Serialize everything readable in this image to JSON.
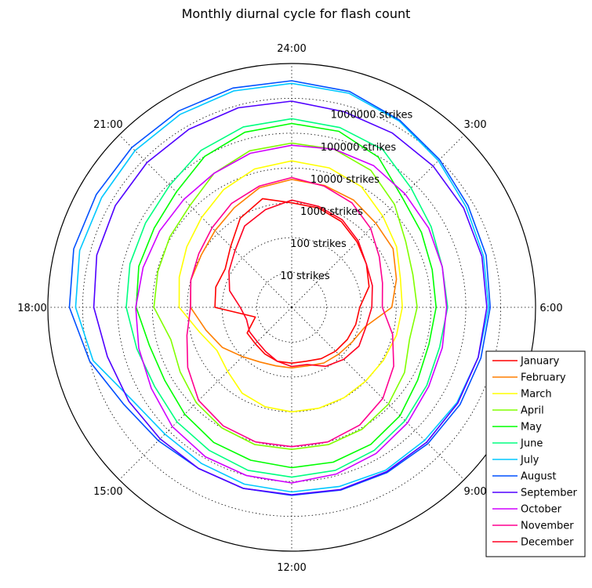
{
  "chart_data": {
    "type": "line",
    "projection": "polar",
    "title": "Monthly diurnal cycle for flash count",
    "theta_tick_labels": [
      "24:00",
      "3:00",
      "6:00",
      "9:00",
      "12:00",
      "15:00",
      "18:00",
      "21:00"
    ],
    "theta_tick_hours": [
      0,
      3,
      6,
      9,
      12,
      15,
      18,
      21
    ],
    "theta_direction": "clockwise",
    "theta_zero": "top",
    "radial_scale": "log",
    "radial_tick_labels": [
      "10 strikes",
      "100 strikes",
      "1000 strikes",
      "10000 strikes",
      "100000 strikes",
      "1000000 strikes"
    ],
    "radial_tick_values": [
      10,
      100,
      1000,
      10000,
      100000,
      1000000
    ],
    "rlim": [
      1,
      10000000
    ],
    "grid": true,
    "legend_position": "lower-right",
    "hours": [
      0,
      1,
      2,
      3,
      4,
      5,
      6,
      7,
      8,
      9,
      10,
      11,
      12,
      13,
      14,
      15,
      16,
      17,
      18,
      19,
      20,
      21,
      22,
      23
    ],
    "series": [
      {
        "name": "January",
        "color": "#ff0000",
        "values": [
          1000,
          900,
          700,
          450,
          300,
          200,
          90,
          80,
          70,
          60,
          50,
          40,
          40,
          40,
          35,
          30,
          30,
          12,
          160,
          180,
          160,
          300,
          900,
          1700
        ]
      },
      {
        "name": "February",
        "color": "#ff7f00",
        "values": [
          4700,
          4200,
          3600,
          2600,
          2300,
          1300,
          750,
          150,
          100,
          80,
          70,
          55,
          55,
          55,
          65,
          100,
          200,
          350,
          800,
          1000,
          1000,
          1300,
          2000,
          3600
        ]
      },
      {
        "name": "March",
        "color": "#ffff00",
        "values": [
          16000,
          14000,
          10000,
          5000,
          3000,
          1700,
          1500,
          1300,
          1100,
          1000,
          1000,
          1000,
          1000,
          900,
          700,
          400,
          300,
          550,
          1700,
          2200,
          3000,
          4500,
          8000,
          13000
        ]
      },
      {
        "name": "April",
        "color": "#80ff00",
        "values": [
          52000,
          50000,
          35000,
          15000,
          6000,
          4000,
          4000,
          3200,
          5500,
          8500,
          11000,
          12000,
          12000,
          12000,
          10000,
          7500,
          5000,
          3900,
          9000,
          9500,
          11000,
          13500,
          28000,
          45000
        ]
      },
      {
        "name": "May",
        "color": "#00ff00",
        "values": [
          190000,
          170000,
          95000,
          30000,
          20000,
          15000,
          14000,
          12000,
          15000,
          25000,
          35000,
          40000,
          40000,
          35000,
          30000,
          22000,
          16000,
          17000,
          29000,
          35000,
          36000,
          48000,
          100000,
          160000
        ]
      },
      {
        "name": "June",
        "color": "#00ff80",
        "values": [
          260000,
          220000,
          170000,
          70000,
          42000,
          30000,
          30000,
          25000,
          30000,
          40000,
          55000,
          70000,
          75000,
          70000,
          55000,
          45000,
          35000,
          40000,
          56000,
          64000,
          70000,
          90000,
          160000,
          230000
        ]
      },
      {
        "name": "July",
        "color": "#00c8ff",
        "values": [
          2700000,
          2300000,
          1500000,
          900000,
          600000,
          500000,
          450000,
          350000,
          300000,
          250000,
          250000,
          210000,
          200000,
          180000,
          150000,
          140000,
          200000,
          800000,
          1600000,
          2000000,
          2000000,
          2300000,
          2500000,
          2700000
        ]
      },
      {
        "name": "August",
        "color": "#0050ff",
        "values": [
          3200000,
          2600000,
          1600000,
          1000000,
          700000,
          600000,
          500000,
          420000,
          380000,
          340000,
          300000,
          270000,
          250000,
          240000,
          220000,
          260000,
          370000,
          1000000,
          2400000,
          3000000,
          3000000,
          3100000,
          3200000,
          3300000
        ]
      },
      {
        "name": "September",
        "color": "#5000ff",
        "values": [
          830000,
          650000,
          600000,
          550000,
          500000,
          450000,
          400000,
          350000,
          320000,
          300000,
          280000,
          260000,
          240000,
          240000,
          220000,
          220000,
          250000,
          300000,
          480000,
          620000,
          700000,
          750000,
          800000,
          850000
        ]
      },
      {
        "name": "October",
        "color": "#d000ff",
        "values": [
          45000,
          50000,
          50000,
          40000,
          35000,
          30000,
          28000,
          30000,
          35000,
          50000,
          70000,
          90000,
          110000,
          100000,
          90000,
          70000,
          45000,
          35000,
          30000,
          26000,
          24000,
          24000,
          28000,
          38000
        ]
      },
      {
        "name": "November",
        "color": "#ff0090",
        "values": [
          5300,
          4000,
          2900,
          1600,
          800,
          500,
          400,
          1000,
          2400,
          5000,
          8000,
          10000,
          10000,
          10000,
          8500,
          6000,
          2800,
          1300,
          800,
          1000,
          1200,
          1700,
          2800,
          4000
        ]
      },
      {
        "name": "December",
        "color": "#ff0020",
        "values": [
          1200,
          1000,
          800,
          500,
          300,
          250,
          200,
          160,
          170,
          130,
          90,
          50,
          50,
          40,
          30,
          25,
          25,
          22,
          30,
          70,
          120,
          200,
          500,
          800
        ]
      }
    ]
  }
}
